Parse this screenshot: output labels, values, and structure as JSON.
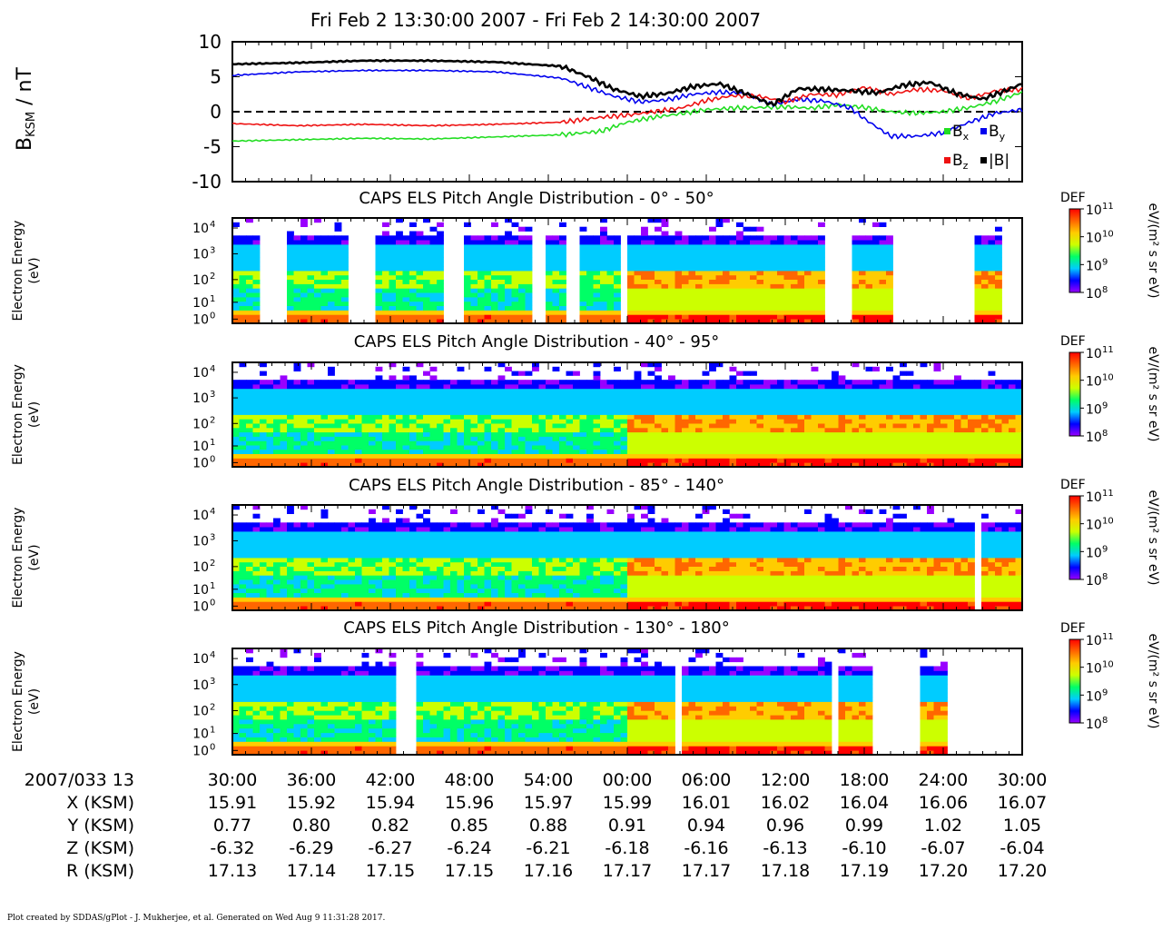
{
  "title": "Fri Feb 2 13:30:00 2007 - Fri Feb 2 14:30:00 2007",
  "footer": "Plot created by SDDAS/gPlot - J. Mukherjee, et al.  Generated on Wed Aug 9 11:31:28 2017.",
  "colors": {
    "bx": "#22dd22",
    "by": "#0000ee",
    "bz": "#ee1111",
    "btot": "#000000",
    "colormap": [
      "#9900ff",
      "#0000ff",
      "#00ccff",
      "#00ff66",
      "#ccff00",
      "#ffcc00",
      "#ff6600",
      "#ff0000"
    ]
  },
  "chart_data": [
    {
      "type": "line",
      "ylabel_main": "B",
      "ylabel_sub": "KSM",
      "ylabel_unit": " / nT",
      "ylim": [
        -10,
        10
      ],
      "yticks": [
        "10",
        "5",
        "0",
        "-5",
        "-10"
      ],
      "xlim_minutes": [
        0,
        60
      ],
      "zero_line": "dashed",
      "legend": [
        {
          "name": "B",
          "sub": "x",
          "series": "Bx"
        },
        {
          "name": "B",
          "sub": "y",
          "series": "By"
        },
        {
          "name": "B",
          "sub": "z",
          "series": "Bz"
        },
        {
          "name": "|B|",
          "sub": "",
          "series": "|B|"
        }
      ],
      "series": [
        {
          "name": "Bx",
          "x": [
            0,
            5,
            10,
            15,
            20,
            25,
            28,
            30,
            32,
            34,
            36,
            38,
            40,
            42,
            44,
            46,
            48,
            50,
            52,
            54,
            56,
            58,
            60
          ],
          "y": [
            -4.2,
            -4.0,
            -3.8,
            -3.9,
            -3.6,
            -3.3,
            -2.8,
            -1.5,
            -0.8,
            -0.3,
            0.3,
            0.5,
            0.6,
            0.7,
            0.5,
            1.0,
            0.6,
            0.0,
            -0.2,
            0.0,
            0.6,
            1.5,
            2.8
          ]
        },
        {
          "name": "By",
          "x": [
            0,
            5,
            10,
            15,
            20,
            25,
            27,
            29,
            31,
            33,
            35,
            37,
            39,
            41,
            43,
            45,
            47,
            48,
            50,
            52,
            54,
            56,
            58,
            60
          ],
          "y": [
            5.2,
            5.7,
            5.9,
            5.9,
            5.7,
            4.8,
            3.5,
            2.2,
            1.4,
            1.7,
            2.5,
            2.8,
            2.6,
            1.0,
            1.8,
            1.5,
            0.5,
            -1.0,
            -3.5,
            -3.5,
            -3.0,
            -1.5,
            -0.2,
            0.3
          ]
        },
        {
          "name": "Bz",
          "x": [
            0,
            5,
            10,
            15,
            20,
            25,
            28,
            30,
            32,
            34,
            36,
            38,
            40,
            42,
            44,
            46,
            48,
            50,
            52,
            54,
            56,
            58,
            60
          ],
          "y": [
            -1.7,
            -2.0,
            -1.8,
            -2.0,
            -1.8,
            -1.5,
            -0.8,
            -0.5,
            0.0,
            0.5,
            1.6,
            2.3,
            2.2,
            1.4,
            2.5,
            2.4,
            3.5,
            2.5,
            3.2,
            3.0,
            1.9,
            3.0,
            3.2
          ]
        },
        {
          "name": "|B|",
          "x": [
            0,
            5,
            10,
            15,
            20,
            25,
            27,
            29,
            31,
            33,
            35,
            37,
            39,
            41,
            43,
            45,
            47,
            49,
            51,
            53,
            55,
            57,
            59,
            60
          ],
          "y": [
            6.8,
            7.0,
            7.3,
            7.3,
            7.1,
            6.5,
            5.0,
            3.2,
            2.2,
            2.6,
            3.6,
            4.0,
            2.6,
            1.0,
            3.3,
            3.2,
            3.0,
            2.7,
            3.8,
            4.2,
            2.6,
            1.8,
            3.2,
            4.0
          ]
        }
      ]
    },
    {
      "type": "heatmap",
      "title": "CAPS ELS Pitch Angle Distribution - 0° - 50°",
      "ylabel": "Electron Energy",
      "yunit": "(eV)",
      "yticks": [
        "10",
        "10",
        "10",
        "10",
        "10"
      ],
      "ytick_exp": [
        "4",
        "3",
        "2",
        "1",
        "0"
      ],
      "cbar_label": "DEF",
      "cbar_ticks": [
        "10",
        "10",
        "10",
        "10"
      ],
      "cbar_exp": [
        "11",
        "10",
        "9",
        "8"
      ],
      "cbar_unit": "eV/(m² s sr eV)",
      "data_gaps_minutes": [
        [
          2.0,
          4.3
        ],
        [
          8.9,
          11.0
        ],
        [
          15.8,
          17.8
        ],
        [
          22.9,
          23.6
        ],
        [
          25.2,
          26.3
        ],
        [
          29.3,
          30.2
        ],
        [
          45.1,
          47.0
        ],
        [
          50.0,
          56.3
        ],
        [
          58.2,
          60.0
        ]
      ]
    },
    {
      "type": "heatmap",
      "title": "CAPS ELS Pitch Angle Distribution - 40° - 95°",
      "ylabel": "Electron Energy",
      "yunit": "(eV)",
      "yticks": [
        "10",
        "10",
        "10",
        "10",
        "10"
      ],
      "ytick_exp": [
        "4",
        "3",
        "2",
        "1",
        "0"
      ],
      "cbar_label": "DEF",
      "cbar_ticks": [
        "10",
        "10",
        "10",
        "10"
      ],
      "cbar_exp": [
        "11",
        "10",
        "9",
        "8"
      ],
      "cbar_unit": "eV/(m² s sr eV)",
      "data_gaps_minutes": []
    },
    {
      "type": "heatmap",
      "title": "CAPS ELS Pitch Angle Distribution - 85° - 140°",
      "ylabel": "Electron Energy",
      "yunit": "(eV)",
      "yticks": [
        "10",
        "10",
        "10",
        "10",
        "10"
      ],
      "ytick_exp": [
        "4",
        "3",
        "2",
        "1",
        "0"
      ],
      "cbar_label": "DEF",
      "cbar_ticks": [
        "10",
        "10",
        "10",
        "10"
      ],
      "cbar_exp": [
        "11",
        "10",
        "9",
        "8"
      ],
      "cbar_unit": "eV/(m² s sr eV)",
      "data_gaps_minutes": [
        [
          56.2,
          56.9
        ]
      ]
    },
    {
      "type": "heatmap",
      "title": "CAPS ELS Pitch Angle Distribution - 130° - 180°",
      "ylabel": "Electron Energy",
      "yunit": "(eV)",
      "yticks": [
        "10",
        "10",
        "10",
        "10",
        "10"
      ],
      "ytick_exp": [
        "4",
        "3",
        "2",
        "1",
        "0"
      ],
      "cbar_label": "DEF",
      "cbar_ticks": [
        "10",
        "10",
        "10",
        "10"
      ],
      "cbar_exp": [
        "11",
        "10",
        "9",
        "8"
      ],
      "cbar_unit": "eV/(m² s sr eV)",
      "data_gaps_minutes": [
        [
          12.3,
          13.8
        ],
        [
          26.7,
          27.0
        ],
        [
          33.8,
          34.3
        ],
        [
          45.4,
          45.8
        ],
        [
          48.7,
          52.0
        ],
        [
          54.2,
          60.0
        ]
      ]
    }
  ],
  "ephemeris": {
    "rows": [
      {
        "label": "2007/033 13",
        "values": [
          "30:00",
          "36:00",
          "42:00",
          "48:00",
          "54:00",
          "00:00",
          "06:00",
          "12:00",
          "18:00",
          "24:00",
          "30:00"
        ]
      },
      {
        "label": "X (KSM)",
        "values": [
          "15.91",
          "15.92",
          "15.94",
          "15.96",
          "15.97",
          "15.99",
          "16.01",
          "16.02",
          "16.04",
          "16.06",
          "16.07"
        ]
      },
      {
        "label": "Y (KSM)",
        "values": [
          "0.77",
          "0.80",
          "0.82",
          "0.85",
          "0.88",
          "0.91",
          "0.94",
          "0.96",
          "0.99",
          "1.02",
          "1.05"
        ]
      },
      {
        "label": "Z (KSM)",
        "values": [
          "-6.32",
          "-6.29",
          "-6.27",
          "-6.24",
          "-6.21",
          "-6.18",
          "-6.16",
          "-6.13",
          "-6.10",
          "-6.07",
          "-6.04"
        ]
      },
      {
        "label": "R (KSM)",
        "values": [
          "17.13",
          "17.14",
          "17.15",
          "17.15",
          "17.16",
          "17.17",
          "17.17",
          "17.18",
          "17.19",
          "17.20",
          "17.20"
        ]
      }
    ]
  }
}
